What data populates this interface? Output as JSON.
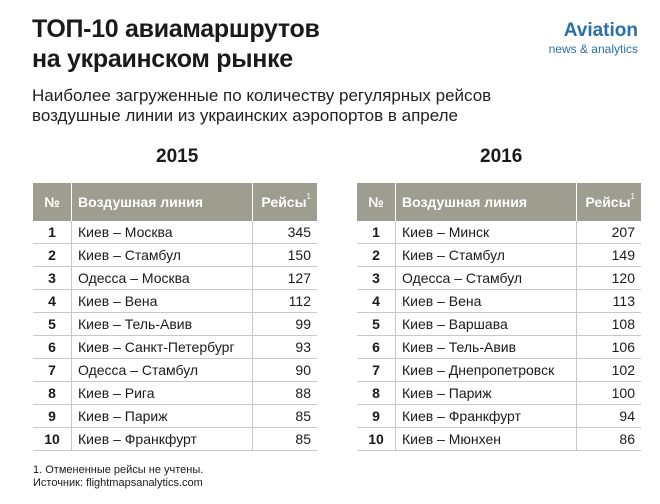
{
  "header": {
    "title_line1": "ТОП-10 авиамаршрутов",
    "title_line2": "на украинском рынке",
    "subtitle_line1": "Наиболее загруженные по количеству регулярных рейсов",
    "subtitle_line2": "воздушные линии из украинских аэропортов в апреле"
  },
  "logo": {
    "main": "Aviation",
    "sub": "news & analytics",
    "color": "#2a6fa8"
  },
  "columns": {
    "num": "№",
    "route": "Воздушная линия",
    "flights": "Рейсы",
    "flights_mark": "1"
  },
  "tables": [
    {
      "year": "2015",
      "rows": [
        {
          "n": "1",
          "route": "Киев – Москва",
          "flights": "345"
        },
        {
          "n": "2",
          "route": "Киев – Стамбул",
          "flights": "150"
        },
        {
          "n": "3",
          "route": "Одесса – Москва",
          "flights": "127"
        },
        {
          "n": "4",
          "route": "Киев – Вена",
          "flights": "112"
        },
        {
          "n": "5",
          "route": "Киев – Тель-Авив",
          "flights": "99"
        },
        {
          "n": "6",
          "route": "Киев – Санкт-Петербург",
          "flights": "93"
        },
        {
          "n": "7",
          "route": "Одесса – Стамбул",
          "flights": "90"
        },
        {
          "n": "8",
          "route": "Киев – Рига",
          "flights": "88"
        },
        {
          "n": "9",
          "route": "Киев – Париж",
          "flights": "85"
        },
        {
          "n": "10",
          "route": "Киев – Франкфурт",
          "flights": "85"
        }
      ]
    },
    {
      "year": "2016",
      "rows": [
        {
          "n": "1",
          "route": "Киев – Минск",
          "flights": "207"
        },
        {
          "n": "2",
          "route": "Киев – Стамбул",
          "flights": "149"
        },
        {
          "n": "3",
          "route": "Одесса – Стамбул",
          "flights": "120"
        },
        {
          "n": "4",
          "route": "Киев – Вена",
          "flights": "113"
        },
        {
          "n": "5",
          "route": "Киев – Варшава",
          "flights": "108"
        },
        {
          "n": "6",
          "route": "Киев – Тель-Авив",
          "flights": "106"
        },
        {
          "n": "7",
          "route": "Киев – Днепропетровск",
          "flights": "102"
        },
        {
          "n": "8",
          "route": "Киев – Париж",
          "flights": "100"
        },
        {
          "n": "9",
          "route": "Киев – Франкфурт",
          "flights": "94"
        },
        {
          "n": "10",
          "route": "Киев – Мюнхен",
          "flights": "86"
        }
      ]
    }
  ],
  "footnote": {
    "line1": "1. Отмененные рейсы не учтены.",
    "line2": "Источник: flightmapsanalytics.com"
  },
  "colors": {
    "header_bg": "#9d9d90",
    "row_border": "#c8c8c8"
  }
}
